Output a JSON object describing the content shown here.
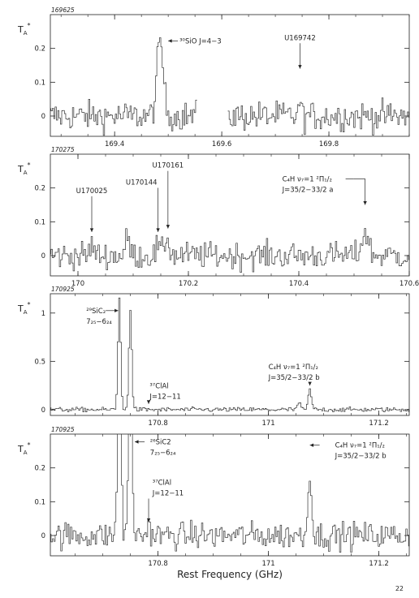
{
  "figure": {
    "xlabel": "Rest Frequency (GHz)",
    "page_number": "22",
    "ylabel_main": "T",
    "ylabel_sub": "A",
    "ylabel_sup": "*"
  },
  "chart_data": [
    {
      "type": "line",
      "panel_label": "169625",
      "xlim": [
        169.28,
        169.95
      ],
      "ylim": [
        -0.06,
        0.3
      ],
      "xticks": [
        169.4,
        169.6,
        169.8
      ],
      "xtick_labels": [
        "169.4",
        "169.6",
        "169.8"
      ],
      "yticks": [
        0,
        0.1,
        0.2
      ],
      "ytick_labels": [
        "0",
        "0.1",
        "0.2"
      ],
      "noise": 0.022,
      "step": 0.0025,
      "gaps": [
        [
          169.555,
          169.61
        ]
      ],
      "peaks": [
        {
          "center": 169.485,
          "height": 0.22,
          "width": 0.006
        },
        {
          "center": 169.746,
          "height": 0.06,
          "width": 0.0015
        }
      ],
      "annotations": [
        {
          "lines": [
            "³⁰SiO J=4−3"
          ],
          "tx": 169.5,
          "ty": 0.215,
          "ax": 169.5,
          "ay": 0.215,
          "arrow": "left",
          "anchor": "start"
        },
        {
          "lines": [
            "U169742"
          ],
          "tx": 169.746,
          "ty": 0.225,
          "ax": 169.746,
          "ay": 0.14,
          "arrow": "down",
          "anchor": "middle"
        }
      ]
    },
    {
      "type": "line",
      "panel_label": "170275",
      "xlim": [
        169.95,
        170.6
      ],
      "ylim": [
        -0.06,
        0.3
      ],
      "xticks": [
        170,
        170.2,
        170.4,
        170.6
      ],
      "xtick_labels": [
        "170",
        "170.2",
        "170.4",
        "170.6"
      ],
      "yticks": [
        0,
        0.1,
        0.2
      ],
      "ytick_labels": [
        "0",
        "0.1",
        "0.2"
      ],
      "noise": 0.02,
      "step": 0.0025,
      "gaps": [],
      "peaks": [
        {
          "center": 170.025,
          "height": 0.035,
          "width": 0.003
        },
        {
          "center": 170.145,
          "height": 0.03,
          "width": 0.003
        },
        {
          "center": 170.161,
          "height": 0.055,
          "width": 0.004
        },
        {
          "center": 170.09,
          "height": 0.05,
          "width": 0.004
        },
        {
          "center": 170.52,
          "height": 0.07,
          "width": 0.006
        }
      ],
      "annotations": [
        {
          "lines": [
            "U170025"
          ],
          "tx": 170.025,
          "ty": 0.185,
          "ax": 170.025,
          "ay": 0.07,
          "arrow": "down",
          "anchor": "middle"
        },
        {
          "lines": [
            "U170144"
          ],
          "tx": 170.115,
          "ty": 0.21,
          "ax": 170.145,
          "ay": 0.07,
          "arrow": "down",
          "anchor": "middle"
        },
        {
          "lines": [
            "U170161"
          ],
          "tx": 170.163,
          "ty": 0.26,
          "ax": 170.163,
          "ay": 0.08,
          "arrow": "down",
          "anchor": "middle"
        },
        {
          "lines": [
            "C₄H ν₇=1 ²Π₁/₂",
            "J=35/2−33/2 a"
          ],
          "tx": 170.37,
          "ty": 0.22,
          "ax": 170.52,
          "ay": 0.15,
          "arrow": "bend",
          "anchor": "start"
        }
      ]
    },
    {
      "type": "line",
      "panel_label": "170925",
      "xlim": [
        170.605,
        171.255
      ],
      "ylim": [
        -0.06,
        1.2
      ],
      "xticks": [
        170.8,
        171,
        171.2
      ],
      "xtick_labels": [
        "170.8",
        "171",
        "171.2"
      ],
      "yticks": [
        0,
        0.5,
        1
      ],
      "ytick_labels": [
        "0",
        "0.5",
        "1"
      ],
      "noise": 0.012,
      "step": 0.0025,
      "gaps": [],
      "peaks": [
        {
          "center": 170.73,
          "height": 1.15,
          "width": 0.0025
        },
        {
          "center": 170.75,
          "height": 1.05,
          "width": 0.0025
        },
        {
          "center": 171.055,
          "height": 0.07,
          "width": 0.003
        },
        {
          "center": 171.075,
          "height": 0.2,
          "width": 0.003
        }
      ],
      "annotations": [
        {
          "lines": [
            "²⁹SiC₂",
            "7₂₅−6₂₄"
          ],
          "tx": 170.67,
          "ty": 1.0,
          "ax": 170.728,
          "ay": 1.0,
          "arrow": "right",
          "anchor": "start"
        },
        {
          "lines": [
            "³⁷ClAl",
            "J=12−11"
          ],
          "tx": 170.785,
          "ty": 0.22,
          "ax": 170.783,
          "ay": 0.06,
          "arrow": "down",
          "anchor": "start"
        },
        {
          "lines": [
            "C₄H ν₇=1 ²Π₁/₂",
            "J=35/2−33/2 b"
          ],
          "tx": 171.0,
          "ty": 0.42,
          "ax": 171.075,
          "ay": 0.25,
          "arrow": "down",
          "anchor": "start"
        }
      ]
    },
    {
      "type": "line",
      "panel_label": "170925",
      "xlim": [
        170.605,
        171.255
      ],
      "ylim": [
        -0.06,
        0.3
      ],
      "xticks": [
        170.8,
        171,
        171.2
      ],
      "xtick_labels": [
        "170.8",
        "171",
        "171.2"
      ],
      "yticks": [
        0,
        0.1,
        0.2
      ],
      "ytick_labels": [
        "0",
        "0.1",
        "0.2"
      ],
      "noise": 0.02,
      "step": 0.0025,
      "gaps": [],
      "peaks": [
        {
          "center": 170.73,
          "height": 1.15,
          "width": 0.0025
        },
        {
          "center": 170.75,
          "height": 1.05,
          "width": 0.0025
        },
        {
          "center": 170.783,
          "height": 0.03,
          "width": 0.003
        },
        {
          "center": 171.075,
          "height": 0.2,
          "width": 0.003
        }
      ],
      "annotations": [
        {
          "lines": [
            "²⁶SiC2",
            "7₂₅−6₂₄"
          ],
          "tx": 170.765,
          "ty": 0.27,
          "ax": 170.758,
          "ay": 0.27,
          "arrow": "left",
          "anchor": "start"
        },
        {
          "lines": [
            "³⁷ClAl",
            "J=12−11"
          ],
          "tx": 170.79,
          "ty": 0.15,
          "ax": 170.783,
          "ay": 0.04,
          "arrow": "down",
          "anchor": "start"
        },
        {
          "lines": [
            "C₄H ν₇=1 ²Π₁/₂",
            "J=35/2−33/2 b"
          ],
          "tx": 171.1,
          "ty": 0.26,
          "ax": 171.075,
          "ay": 0.25,
          "arrow": "left",
          "anchor": "start"
        }
      ]
    }
  ]
}
